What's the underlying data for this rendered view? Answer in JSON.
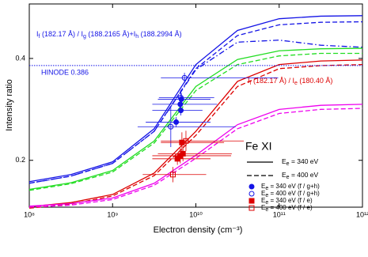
{
  "chart_data": {
    "type": "line",
    "xlabel": "Electron density (cm⁻³)",
    "ylabel": "Intensity ratio",
    "xlog": true,
    "xlim": [
      100000000,
      1000000000000
    ],
    "xticks": [
      {
        "value": 100000000,
        "label": "10⁸"
      },
      {
        "value": 1000000000,
        "label": "10⁹"
      },
      {
        "value": 10000000000,
        "label": "10¹⁰"
      },
      {
        "value": 100000000000,
        "label": "10¹¹"
      },
      {
        "value": 1000000000000,
        "label": "10¹²"
      }
    ],
    "ylim": [
      0.108,
      0.507
    ],
    "yticks": [
      0.2,
      0.4
    ],
    "x": [
      100000000,
      316000000,
      1000000000,
      3160000000,
      10000000000,
      31600000000,
      100000000000,
      316000000000,
      1000000000000
    ],
    "curves": [
      {
        "color": "#1414e6",
        "dash": "solid",
        "values": [
          0.158,
          0.172,
          0.197,
          0.262,
          0.388,
          0.455,
          0.478,
          0.483,
          0.484
        ]
      },
      {
        "color": "#1414e6",
        "dash": "dashed",
        "values": [
          0.155,
          0.169,
          0.194,
          0.257,
          0.38,
          0.445,
          0.466,
          0.471,
          0.472
        ]
      },
      {
        "color": "#1414e6",
        "dash": "dashdot",
        "values": [
          0.155,
          0.169,
          0.194,
          0.257,
          0.378,
          0.432,
          0.436,
          0.426,
          0.422
        ]
      },
      {
        "color": "#22dd22",
        "dash": "solid",
        "values": [
          0.143,
          0.156,
          0.18,
          0.238,
          0.345,
          0.398,
          0.415,
          0.419,
          0.42
        ]
      },
      {
        "color": "#22dd22",
        "dash": "dashed",
        "values": [
          0.141,
          0.154,
          0.177,
          0.234,
          0.337,
          0.388,
          0.405,
          0.41,
          0.41
        ]
      },
      {
        "color": "#dd0000",
        "dash": "solid",
        "values": [
          0.109,
          0.117,
          0.133,
          0.175,
          0.257,
          0.355,
          0.388,
          0.395,
          0.397
        ]
      },
      {
        "color": "#dd0000",
        "dash": "dashed",
        "values": [
          0.106,
          0.114,
          0.13,
          0.17,
          0.249,
          0.345,
          0.38,
          0.386,
          0.388
        ]
      },
      {
        "color": "#ee00ee",
        "dash": "solid",
        "values": [
          0.11,
          0.115,
          0.126,
          0.155,
          0.21,
          0.27,
          0.3,
          0.308,
          0.31
        ]
      },
      {
        "color": "#ee00ee",
        "dash": "dashed",
        "values": [
          0.108,
          0.112,
          0.123,
          0.151,
          0.204,
          0.262,
          0.292,
          0.3,
          0.302
        ]
      }
    ],
    "hline": {
      "value": 0.386,
      "color": "#1414e6",
      "label": "HINODE 0.386"
    },
    "annotations": [
      {
        "color": "#1414e6",
        "segments": [
          "I",
          "f",
          " (182.17 Å) / I",
          "g",
          " (188.2165 Å)+I",
          "h",
          " (188.2994 Å)"
        ]
      },
      {
        "color": "#dd0000",
        "segments": [
          "I",
          "f",
          " (182.17 Å) / I",
          "e",
          " (180.40 Å)"
        ]
      }
    ],
    "legend_title": "Fe XI",
    "legend_lines": [
      {
        "dash": "solid",
        "segments": [
          "E",
          "e",
          " = 340 eV"
        ]
      },
      {
        "dash": "dashed",
        "segments": [
          "E",
          "e",
          " = 400 eV"
        ]
      }
    ],
    "series": [
      {
        "name": [
          "E",
          "e",
          " = 340 eV (f / g+h)"
        ],
        "color": "#1414e6",
        "marker": "circle",
        "filled": true,
        "x": [
          6500000000,
          6600000000,
          5800000000,
          6700000000
        ],
        "values": [
          0.31,
          0.298,
          0.275,
          0.32
        ],
        "xerr": [
          [
            3500000000,
            11500000000
          ],
          [
            3600000000,
            5400000000
          ],
          [
            3300000000,
            9200000000
          ],
          [
            3200000000,
            8300000000
          ]
        ],
        "yerr": [
          0.012,
          0.01,
          0.01,
          0.012
        ]
      },
      {
        "name": [
          "E",
          "e",
          " = 400 eV (f / g+h)"
        ],
        "color": "#1414e6",
        "marker": "circle",
        "filled": false,
        "x": [
          5000000000,
          6600000000,
          7300000000
        ],
        "values": [
          0.266,
          0.323,
          0.362
        ],
        "xerr": [
          [
            3000000000,
            25000000000
          ],
          [
            3000000000,
            10000000000
          ],
          [
            3500000000,
            90000000000
          ]
        ],
        "yerr": [
          0.04,
          0.015,
          0.01
        ]
      },
      {
        "name": [
          "E",
          "e",
          " = 340 eV (f / e)"
        ],
        "color": "#dd0000",
        "marker": "square",
        "filled": true,
        "x": [
          6000000000,
          6500000000,
          6800000000,
          7000000000
        ],
        "values": [
          0.203,
          0.209,
          0.235,
          0.213
        ],
        "xerr": [
          [
            3000000000,
            9000000000
          ],
          [
            3500000000,
            20000000000
          ],
          [
            3000000000,
            15000000000
          ],
          [
            3500000000,
            20000000000
          ]
        ],
        "yerr": [
          0.012,
          0.015,
          0.02,
          0.015
        ]
      },
      {
        "name": [
          "E",
          "e",
          " = 400 eV (f / e)"
        ],
        "color": "#dd0000",
        "marker": "square",
        "filled": false,
        "x": [
          5300000000,
          7600000000
        ],
        "values": [
          0.172,
          0.238
        ],
        "xerr": [
          [
            3000000000,
            8000000000
          ],
          [
            3800000000,
            30000000000
          ]
        ],
        "yerr": [
          0.015,
          0.02
        ]
      }
    ]
  }
}
